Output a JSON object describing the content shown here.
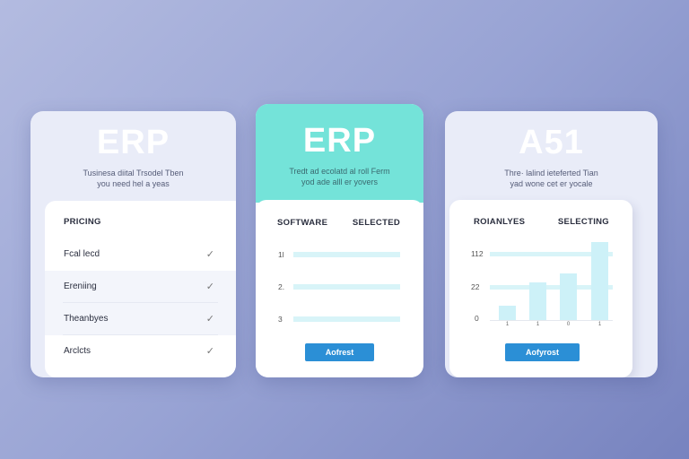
{
  "cards": [
    {
      "title": "ERP",
      "subtitle": [
        "Tusinesa diital Trsodel Tben",
        "you need hel a yeas"
      ],
      "section_header": "PRICING",
      "items": [
        {
          "label": "Fcal lecd",
          "checked": true
        },
        {
          "label": "Ereniing",
          "checked": true
        },
        {
          "label": "Theanbyes",
          "checked": true
        },
        {
          "label": "Arclcts",
          "checked": true
        }
      ],
      "check_glyph": "✓"
    },
    {
      "title": "ERP",
      "subtitle": [
        "Tredt ad ecolatd al roll Ferm",
        "yod ade alll er yovers"
      ],
      "header_color": "#74e3d9",
      "columns": [
        "SOFTWARE",
        "SELECTED"
      ],
      "rows": [
        "1l",
        "2.",
        "3"
      ],
      "button_label": "Aofrest"
    },
    {
      "title": "A51",
      "subtitle": [
        "Thre· lalind ieteferted Tian",
        "yad wone cet er yocale"
      ],
      "columns": [
        "ROIANLYES",
        "SELECTING"
      ],
      "chart": {
        "y_labels": [
          "112",
          "22",
          "0"
        ],
        "x_labels": [
          "1",
          "1",
          "0",
          "1"
        ],
        "bar_values": [
          9,
          24,
          30,
          50
        ]
      },
      "button_label": "Aofyrost"
    }
  ],
  "colors": {
    "accent": "#2b8fd6",
    "teal": "#74e3d9"
  }
}
